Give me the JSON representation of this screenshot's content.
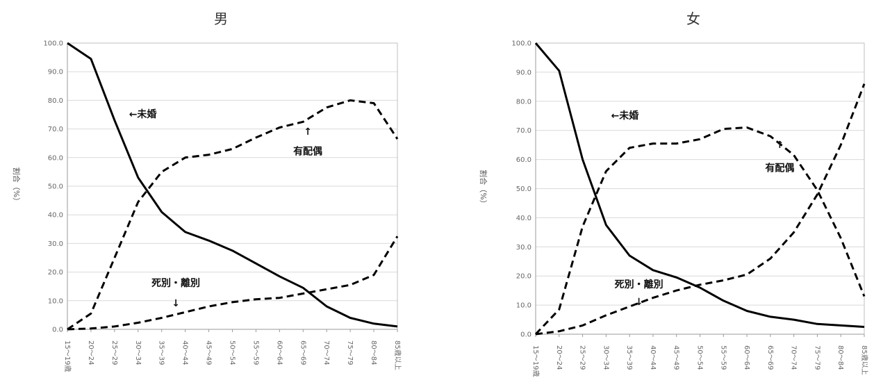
{
  "chart_data": [
    {
      "type": "line",
      "title": "男",
      "ylabel": "割合（%）",
      "ylim": [
        0,
        100
      ],
      "yticks": [
        "0.0",
        "10.0",
        "20.0",
        "30.0",
        "40.0",
        "50.0",
        "60.0",
        "70.0",
        "80.0",
        "90.0",
        "100.0"
      ],
      "categories": [
        "15～19歳",
        "20～24",
        "25～29",
        "30～34",
        "35～39",
        "40～44",
        "45～49",
        "50～54",
        "55～59",
        "60～64",
        "65～69",
        "70～74",
        "75～79",
        "80～84",
        "85歳以上"
      ],
      "grid": true,
      "series": [
        {
          "name": "未婚",
          "style": "solid",
          "values": [
            100.0,
            94.5,
            73.0,
            53.0,
            41.0,
            34.0,
            31.0,
            27.5,
            23.0,
            18.5,
            14.5,
            8.0,
            4.0,
            2.0,
            1.0
          ]
        },
        {
          "name": "有配偶",
          "style": "dashed",
          "values": [
            0.0,
            5.5,
            25.0,
            44.5,
            55.0,
            60.0,
            61.0,
            63.0,
            67.0,
            70.5,
            72.5,
            77.5,
            80.0,
            79.0,
            66.5
          ]
        },
        {
          "name": "死別・離別",
          "style": "dashed",
          "values": [
            0.0,
            0.3,
            1.0,
            2.3,
            4.0,
            6.0,
            8.0,
            9.5,
            10.5,
            11.0,
            12.5,
            14.0,
            15.5,
            19.0,
            32.5
          ]
        }
      ],
      "annotations": [
        {
          "text": "←未婚",
          "series": "未婚",
          "at": 3.2,
          "value": 74
        },
        {
          "text": "↑",
          "series": "有配偶",
          "at": 10.2,
          "value": 68
        },
        {
          "text": "有配偶",
          "series": "有配偶",
          "at": 10.2,
          "value": 61
        },
        {
          "text": "死別・離別",
          "series": "死別・離別",
          "at": 4.6,
          "value": 15
        },
        {
          "text": "↓",
          "series": "死別・離別",
          "at": 4.6,
          "value": 8
        }
      ]
    },
    {
      "type": "line",
      "title": "女",
      "ylabel": "割合（%）",
      "ylim": [
        0,
        100
      ],
      "yticks": [
        "0.0",
        "10.0",
        "20.0",
        "30.0",
        "40.0",
        "50.0",
        "60.0",
        "70.0",
        "80.0",
        "90.0",
        "100.0"
      ],
      "categories": [
        "15～19歳",
        "20～24",
        "25～29",
        "30～34",
        "35～39",
        "40～44",
        "45～49",
        "50～54",
        "55～59",
        "60～64",
        "65～69",
        "70～74",
        "75～79",
        "80～84",
        "85歳以上"
      ],
      "grid": true,
      "series": [
        {
          "name": "未婚",
          "style": "solid",
          "values": [
            100.0,
            90.5,
            60.0,
            37.5,
            27.0,
            22.0,
            19.5,
            16.0,
            11.5,
            8.0,
            6.0,
            5.0,
            3.5,
            3.0,
            2.5
          ]
        },
        {
          "name": "有配偶",
          "style": "dashed",
          "values": [
            0.0,
            8.5,
            37.0,
            56.0,
            64.0,
            65.5,
            65.5,
            67.0,
            70.5,
            71.0,
            68.0,
            61.5,
            49.5,
            33.0,
            13.0
          ]
        },
        {
          "name": "死別・離別",
          "style": "dashed",
          "values": [
            0.0,
            1.0,
            3.0,
            6.5,
            9.5,
            12.5,
            15.0,
            17.0,
            18.5,
            20.5,
            26.0,
            35.0,
            48.0,
            65.0,
            86.0
          ]
        }
      ],
      "annotations": [
        {
          "text": "←未婚",
          "series": "未婚",
          "at": 3.8,
          "value": 74
        },
        {
          "text": "↑",
          "series": "有配偶",
          "at": 10.4,
          "value": 64
        },
        {
          "text": "有配偶",
          "series": "有配偶",
          "at": 10.4,
          "value": 56
        },
        {
          "text": "死別・離別",
          "series": "死別・離別",
          "at": 4.4,
          "value": 16
        },
        {
          "text": "↓",
          "series": "死別・離別",
          "at": 4.4,
          "value": 10
        }
      ]
    }
  ]
}
